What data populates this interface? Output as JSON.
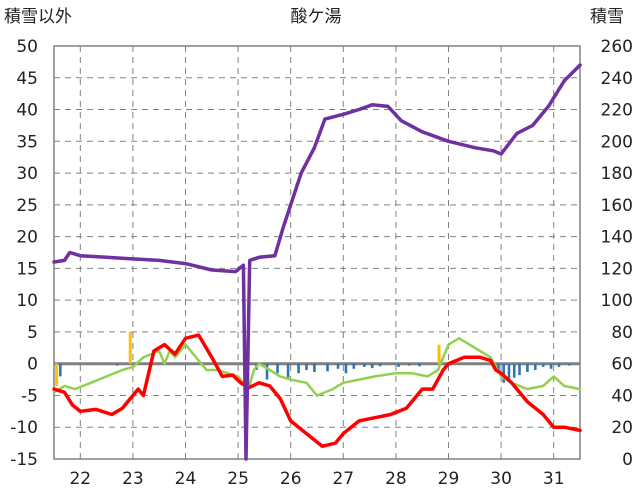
{
  "chart_data": {
    "type": "line",
    "title": "酸ケ湯",
    "left_axis_label": "積雪以外",
    "right_axis_label": "積雪",
    "x_ticks": [
      "22",
      "23",
      "24",
      "25",
      "26",
      "27",
      "28",
      "29",
      "30",
      "31"
    ],
    "left_ylim": [
      -15,
      50
    ],
    "left_yticks": [
      50,
      45,
      40,
      35,
      30,
      25,
      20,
      15,
      10,
      5,
      0,
      -5,
      -10,
      -15
    ],
    "right_ylim": [
      0,
      260
    ],
    "right_yticks": [
      260,
      240,
      220,
      200,
      180,
      160,
      140,
      120,
      100,
      80,
      60,
      40,
      20,
      0
    ],
    "grid": true,
    "x_range": [
      21.5,
      31.5
    ],
    "colors": {
      "snow_depth": "#7030a0",
      "temperature": "#ff0000",
      "humidity": "#92d050",
      "precip_snow": "#2e75b6",
      "precip_rain": "#ffc000"
    },
    "series": [
      {
        "key": "snow_depth",
        "axis": "right",
        "x": [
          21.5,
          21.7,
          21.8,
          22.0,
          22.5,
          23.0,
          23.5,
          24.0,
          24.5,
          24.95,
          25.1,
          25.15,
          25.22,
          25.4,
          25.7,
          25.85,
          26.0,
          26.2,
          26.45,
          26.65,
          27.0,
          27.3,
          27.55,
          27.85,
          28.1,
          28.5,
          29.0,
          29.5,
          29.85,
          30.0,
          30.3,
          30.6,
          30.9,
          31.2,
          31.5
        ],
        "values": [
          124,
          125,
          130,
          128,
          127,
          126,
          125,
          123,
          119,
          118,
          122,
          0,
          125,
          127,
          128,
          145,
          160,
          180,
          196,
          214,
          217,
          220,
          223,
          222,
          213,
          206,
          200,
          196,
          194,
          192,
          205,
          210,
          222,
          238,
          248
        ]
      },
      {
        "key": "temperature",
        "axis": "left",
        "x": [
          21.5,
          21.7,
          21.85,
          22.0,
          22.3,
          22.6,
          22.8,
          23.0,
          23.1,
          23.2,
          23.4,
          23.6,
          23.8,
          24.0,
          24.25,
          24.5,
          24.7,
          24.9,
          25.05,
          25.2,
          25.4,
          25.6,
          25.8,
          26.0,
          26.3,
          26.6,
          26.85,
          27.0,
          27.3,
          27.6,
          27.9,
          28.2,
          28.5,
          28.7,
          28.9,
          29.0,
          29.3,
          29.6,
          29.8,
          29.9,
          30.0,
          30.2,
          30.5,
          30.8,
          31.0,
          31.2,
          31.5
        ],
        "values": [
          -4,
          -4.5,
          -6.5,
          -7.5,
          -7.2,
          -8,
          -7,
          -5,
          -4,
          -5,
          2,
          3,
          1.5,
          4,
          4.5,
          1,
          -2,
          -1.8,
          -3,
          -3.8,
          -3,
          -3.5,
          -5.5,
          -9,
          -11,
          -13,
          -12.5,
          -11,
          -9,
          -8.5,
          -8,
          -7,
          -4,
          -4,
          -1,
          0,
          1,
          1,
          0.5,
          -1,
          -1.5,
          -3,
          -6,
          -8,
          -10,
          -10,
          -10.5
        ]
      },
      {
        "key": "humidity",
        "axis": "left",
        "x": [
          21.5,
          21.7,
          21.9,
          22.2,
          22.5,
          22.8,
          23.0,
          23.2,
          23.5,
          23.6,
          23.7,
          23.8,
          24.0,
          24.2,
          24.4,
          24.6,
          24.8,
          25.0,
          25.1,
          25.2,
          25.3,
          25.4,
          25.6,
          25.8,
          26.0,
          26.3,
          26.5,
          26.8,
          27.0,
          27.3,
          27.6,
          28.0,
          28.3,
          28.6,
          28.8,
          28.9,
          29.0,
          29.2,
          29.4,
          29.6,
          29.8,
          30.0,
          30.2,
          30.5,
          30.8,
          31.0,
          31.2,
          31.5
        ],
        "values": [
          -4.5,
          -3.5,
          -4,
          -3,
          -2,
          -1,
          -0.5,
          1,
          2,
          0,
          2,
          1,
          3,
          1,
          -1,
          -1,
          -1.5,
          -2,
          -3,
          -4,
          -1,
          0,
          -1,
          -2,
          -2.5,
          -3,
          -5,
          -4,
          -3,
          -2.5,
          -2,
          -1.5,
          -1.5,
          -2,
          -1,
          1,
          3,
          4,
          3,
          2,
          1,
          -2,
          -3,
          -4,
          -3.5,
          -2,
          -3.5,
          -4
        ]
      }
    ],
    "precipitation": {
      "axis": "left",
      "snow_bars": [
        [
          21.62,
          -2
        ],
        [
          22.7,
          -0.3
        ],
        [
          24.3,
          -0.2
        ],
        [
          25.15,
          -1.8
        ],
        [
          25.35,
          -1
        ],
        [
          25.55,
          -2.5
        ],
        [
          25.75,
          -1.5
        ],
        [
          25.95,
          -2.2
        ],
        [
          26.15,
          -1.5
        ],
        [
          26.3,
          -1
        ],
        [
          26.45,
          -1.3
        ],
        [
          26.7,
          -1.2
        ],
        [
          26.9,
          -0.8
        ],
        [
          27.05,
          -1.5
        ],
        [
          27.2,
          -0.8
        ],
        [
          27.4,
          -0.5
        ],
        [
          27.55,
          -0.7
        ],
        [
          27.7,
          -0.4
        ],
        [
          28.05,
          -0.5
        ],
        [
          28.25,
          -0.3
        ],
        [
          28.45,
          -0.4
        ],
        [
          29.95,
          -1.5
        ],
        [
          30.05,
          -3
        ],
        [
          30.15,
          -2.8
        ],
        [
          30.25,
          -2.2
        ],
        [
          30.35,
          -1.8
        ],
        [
          30.5,
          -1.3
        ],
        [
          30.65,
          -1
        ],
        [
          30.8,
          -0.5
        ],
        [
          30.95,
          -0.8
        ],
        [
          31.1,
          -0.5
        ],
        [
          31.3,
          -0.3
        ]
      ],
      "rain_bars": [
        [
          21.55,
          -3.5
        ],
        [
          22.95,
          5
        ],
        [
          28.82,
          3
        ]
      ]
    }
  }
}
